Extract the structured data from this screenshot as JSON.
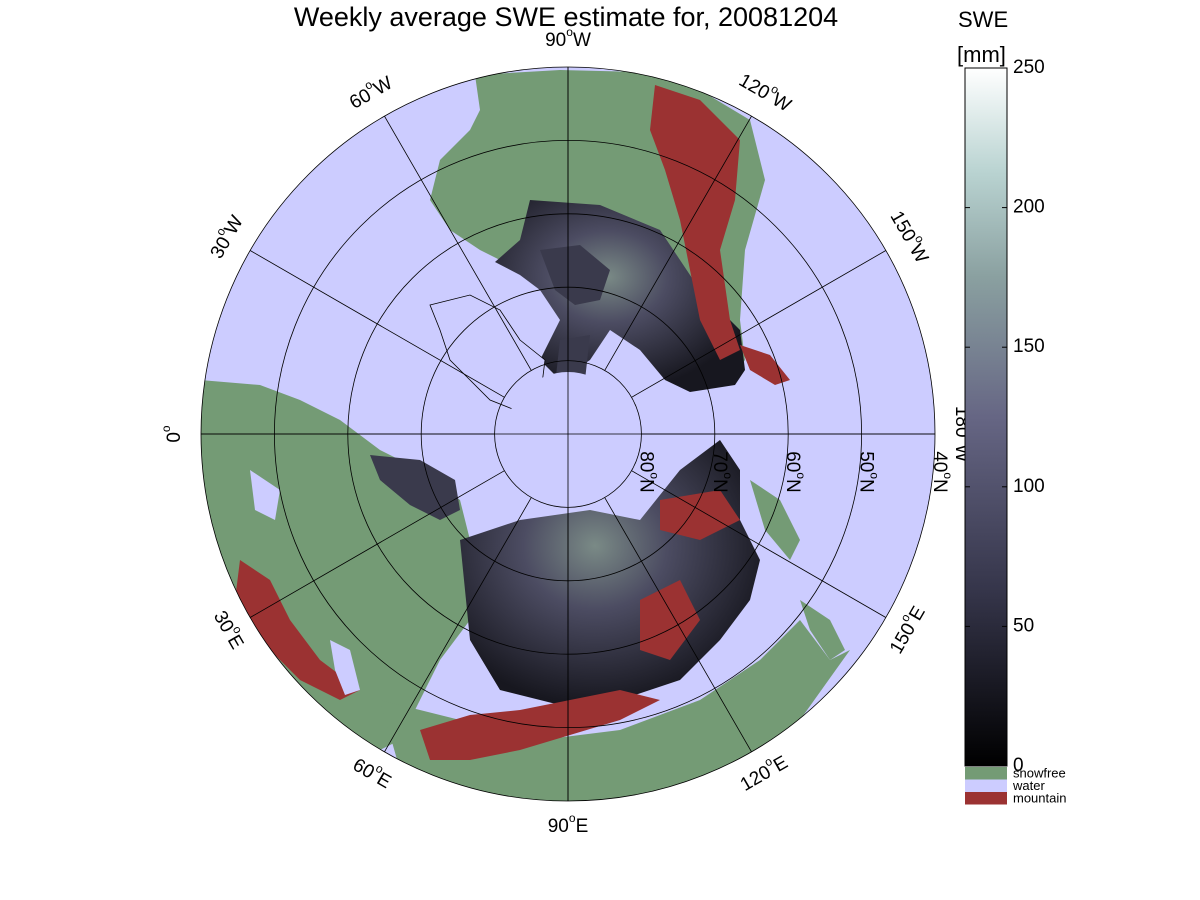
{
  "title": "Weekly average SWE estimate for, 20081204",
  "map": {
    "projection": "north-polar-stereographic",
    "lon_labels": [
      {
        "deg": "90",
        "hem": "W",
        "id": "lon-90w"
      },
      {
        "deg": "120",
        "hem": "W",
        "id": "lon-120w"
      },
      {
        "deg": "150",
        "hem": "W",
        "id": "lon-150w"
      },
      {
        "deg": "180",
        "hem": "W",
        "id": "lon-180w"
      },
      {
        "deg": "150",
        "hem": "E",
        "id": "lon-150e"
      },
      {
        "deg": "120",
        "hem": "E",
        "id": "lon-120e"
      },
      {
        "deg": "90",
        "hem": "E",
        "id": "lon-90e"
      },
      {
        "deg": "60",
        "hem": "E",
        "id": "lon-60e"
      },
      {
        "deg": "30",
        "hem": "E",
        "id": "lon-30e"
      },
      {
        "deg": "0",
        "hem": "",
        "id": "lon-0"
      },
      {
        "deg": "30",
        "hem": "W",
        "id": "lon-30w"
      },
      {
        "deg": "60",
        "hem": "W",
        "id": "lon-60w"
      }
    ],
    "lat_labels": [
      {
        "deg": "80",
        "hem": "N"
      },
      {
        "deg": "70",
        "hem": "N"
      },
      {
        "deg": "60",
        "hem": "N"
      },
      {
        "deg": "50",
        "hem": "N"
      },
      {
        "deg": "40",
        "hem": "N"
      }
    ],
    "colors": {
      "water": "#ccccff",
      "snowfree": "#749b75",
      "mountain": "#9b3232",
      "snow_low": "#101016",
      "snow_mid": "#4a4a60"
    }
  },
  "colorbar": {
    "title": "SWE",
    "unit": "[mm]",
    "ticks": [
      "0",
      "50",
      "100",
      "150",
      "200",
      "250"
    ],
    "range": [
      0,
      250
    ],
    "categories": [
      {
        "label": "snowfree",
        "color": "#749b75"
      },
      {
        "label": "water",
        "color": "#ccccff"
      },
      {
        "label": "mountain",
        "color": "#9b3232"
      }
    ]
  }
}
